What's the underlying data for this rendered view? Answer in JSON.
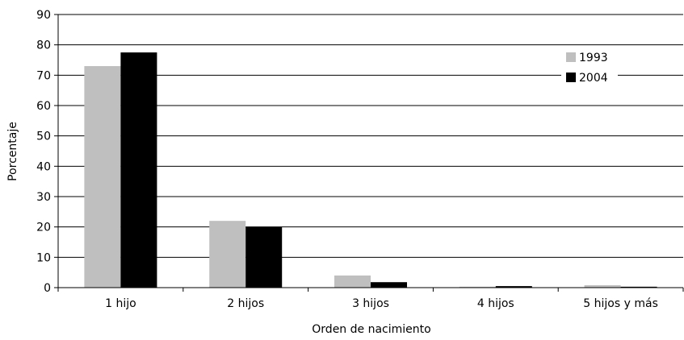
{
  "chart_data": {
    "type": "bar",
    "title": "",
    "xlabel": "Orden de nacimiento",
    "ylabel": "Porcentaje",
    "categories": [
      "1 hijo",
      "2 hijos",
      "3 hijos",
      "4 hijos",
      "5 hijos y más"
    ],
    "series": [
      {
        "name": "1993",
        "values": [
          73,
          22,
          4,
          0.3,
          0.8
        ],
        "color": "#bfbfbf"
      },
      {
        "name": "2004",
        "values": [
          77.5,
          20,
          1.8,
          0.5,
          0.3
        ],
        "color": "#000000"
      }
    ],
    "ylim": [
      0,
      90
    ],
    "yticks": [
      "0",
      "10",
      "20",
      "30",
      "40",
      "50",
      "60",
      "70",
      "80",
      "90"
    ],
    "grid": "horizontal",
    "legend_position": "top-right"
  }
}
